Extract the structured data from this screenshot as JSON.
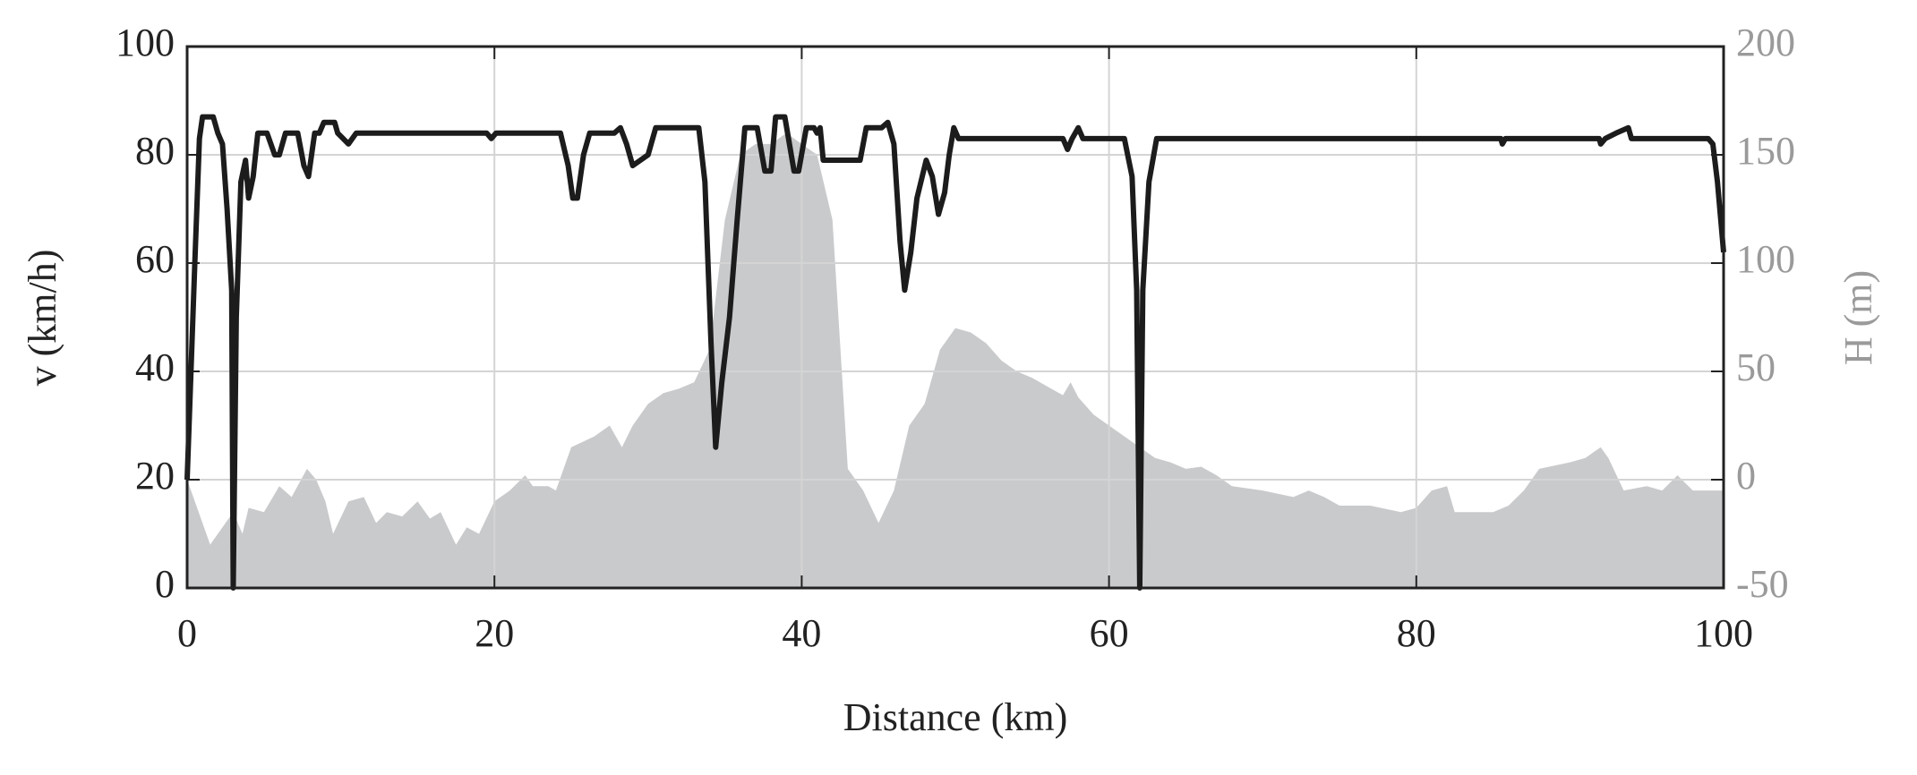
{
  "chart_data": {
    "type": "line",
    "x_label": "Distance (km)",
    "y_label": "v (km/h)",
    "y2_label": "H (m)",
    "xlim": [
      0,
      100
    ],
    "xticks": [
      0,
      20,
      40,
      60,
      80,
      100
    ],
    "ylim": [
      0,
      100
    ],
    "yticks": [
      0,
      20,
      40,
      60,
      80,
      100
    ],
    "y2lim": [
      -50,
      200
    ],
    "y2ticks": [
      -50,
      0,
      50,
      100,
      150,
      200
    ],
    "grid": true,
    "series": [
      {
        "kind": "area",
        "axis": "y2",
        "color": "#c9cacc",
        "x": [
          0,
          1.5,
          3,
          3.6,
          4,
          5,
          6,
          6.8,
          7.8,
          8.4,
          9,
          9.5,
          10.5,
          11.5,
          12.3,
          13,
          14,
          15,
          15.8,
          16.5,
          17.5,
          18.2,
          19,
          20,
          21,
          22,
          22.5,
          23.5,
          24,
          25,
          26.5,
          27.5,
          28.3,
          29,
          30,
          31,
          32,
          33,
          34,
          35,
          36,
          37,
          38,
          39,
          40,
          41,
          42,
          43,
          44,
          45,
          46,
          47,
          48,
          49,
          50,
          51,
          52,
          53,
          54,
          55,
          56,
          57,
          57.5,
          58,
          59,
          60,
          61,
          62,
          63,
          64,
          65,
          66,
          67,
          68,
          70,
          72,
          73,
          74,
          75,
          77,
          79,
          80,
          81,
          82,
          82.5,
          84,
          85,
          86,
          87,
          88,
          90,
          91,
          92,
          92.5,
          93.5,
          95,
          96,
          97,
          98,
          99,
          100
        ],
        "values": [
          0,
          -30,
          -15,
          -25,
          -13,
          -15,
          -3,
          -8,
          5,
          0,
          -10,
          -25,
          -10,
          -8,
          -20,
          -15,
          -17,
          -10,
          -18,
          -15,
          -30,
          -22,
          -25,
          -10,
          -5,
          2,
          -3,
          -3,
          -5,
          15,
          20,
          25,
          15,
          25,
          35,
          40,
          42,
          45,
          60,
          120,
          150,
          155,
          155,
          160,
          155,
          150,
          120,
          5,
          -5,
          -20,
          -5,
          25,
          35,
          60,
          70,
          68,
          63,
          55,
          50,
          47,
          43,
          39,
          45,
          38,
          30,
          25,
          20,
          15,
          10,
          8,
          5,
          6,
          2,
          -3,
          -5,
          -8,
          -5,
          -8,
          -12,
          -12,
          -15,
          -13,
          -5,
          -3,
          -15,
          -15,
          -15,
          -12,
          -5,
          5,
          8,
          10,
          15,
          10,
          -5,
          -3,
          -5,
          2,
          -5,
          -5,
          -5
        ]
      },
      {
        "kind": "line",
        "axis": "y",
        "color": "#1c1c1c",
        "x": [
          0,
          0.5,
          0.8,
          1,
          1.7,
          2,
          2.3,
          2.6,
          2.9,
          3,
          3.2,
          3.5,
          3.8,
          4,
          4.3,
          4.6,
          5.2,
          5.7,
          6,
          6.4,
          7.2,
          7.6,
          7.9,
          8.3,
          8.6,
          8.9,
          9.6,
          9.8,
          10.5,
          11,
          19.5,
          19.8,
          20.1,
          24.3,
          24.8,
          25.1,
          25.4,
          25.8,
          26.2,
          27.8,
          28.2,
          28.6,
          29,
          29.5,
          30,
          30.5,
          33.3,
          33.7,
          34.1,
          34.4,
          34.8,
          35.3,
          35.8,
          36.3,
          37.1,
          37.6,
          38,
          38.3,
          38.9,
          39.5,
          39.8,
          40.3,
          40.8,
          41,
          41.2,
          41.4,
          43.8,
          44.2,
          45.2,
          45.6,
          46,
          46.4,
          46.7,
          47.1,
          47.5,
          48.1,
          48.5,
          48.9,
          49.3,
          49.6,
          49.9,
          50.2,
          57,
          57.3,
          57.6,
          58,
          58.3,
          61,
          61.5,
          61.8,
          62,
          62.2,
          62.6,
          63.1,
          82.5,
          85.5,
          85.6,
          85.8,
          91.9,
          92,
          92.3,
          93,
          93.8,
          94,
          99,
          99.3,
          99.6,
          100
        ],
        "values": [
          20,
          60,
          83,
          87,
          87,
          84,
          82,
          70,
          55,
          0,
          50,
          75,
          79,
          72,
          76,
          84,
          84,
          80,
          80,
          84,
          84,
          78,
          76,
          84,
          84,
          86,
          86,
          84,
          82,
          84,
          84,
          83,
          84,
          84,
          78,
          72,
          72,
          80,
          84,
          84,
          85,
          82,
          78,
          79,
          80,
          85,
          85,
          75,
          45,
          26,
          38,
          50,
          68,
          85,
          85,
          77,
          77,
          87,
          87,
          77,
          77,
          85,
          85,
          84,
          85,
          79,
          79,
          85,
          85,
          86,
          82,
          64,
          55,
          62,
          72,
          79,
          76,
          69,
          73,
          80,
          85,
          83,
          83,
          81,
          83,
          85,
          83,
          83,
          76,
          55,
          0,
          55,
          75,
          83,
          83,
          83,
          82,
          83,
          83,
          82,
          83,
          84,
          85,
          83,
          83,
          82,
          75,
          62
        ]
      }
    ]
  }
}
